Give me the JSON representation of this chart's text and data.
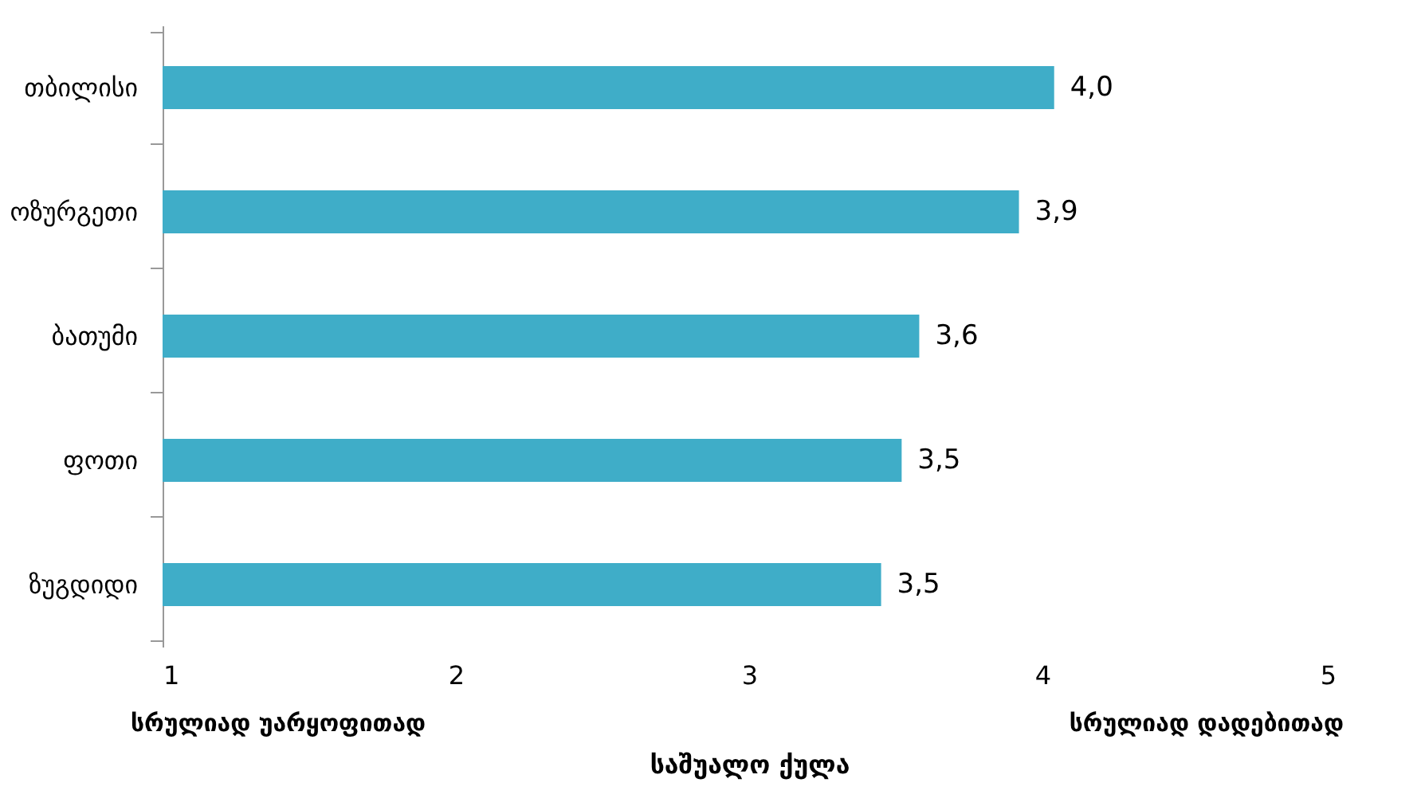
{
  "chart_data": {
    "type": "bar",
    "orientation": "horizontal",
    "categories": [
      "თბილისი",
      "ოზურგეთი",
      "ბათუმი",
      "ფოთი",
      "ზუგდიდი"
    ],
    "values": [
      4.04,
      3.92,
      3.58,
      3.52,
      3.45
    ],
    "value_labels": [
      "4,0",
      "3,9",
      "3,6",
      "3,5",
      "3,5"
    ],
    "color": "#3fadc8",
    "xlim": [
      1,
      5
    ],
    "xticks": [
      1,
      2,
      3,
      4,
      5
    ],
    "xlabel": "საშუალო ქულა",
    "annotations": [
      "სრულიად უარყოფითად",
      "სრულიად დადებითად"
    ],
    "grid": false
  }
}
